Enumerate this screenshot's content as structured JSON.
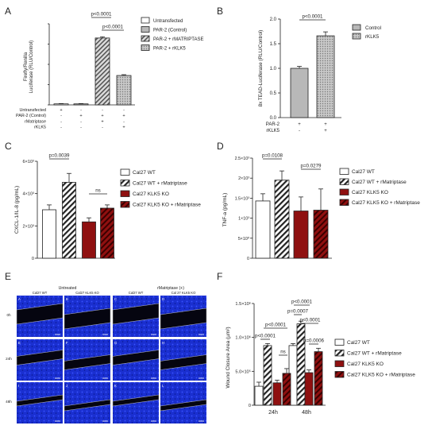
{
  "chart_data": [
    {
      "panel": "A",
      "type": "bar",
      "ylabel": "Firefly/Renilla Luciferase (RLU/Control)",
      "ylim": [
        0,
        80
      ],
      "categories": [
        "Untransfected",
        "PAR-2 (Control)",
        "PAR-2 + rMATRIPTASE",
        "PAR-2 + rKLK5"
      ],
      "values": [
        1,
        1,
        66,
        29
      ],
      "errors": [
        0.3,
        0.3,
        1.2,
        0.8
      ],
      "legend": [
        "Untransfected",
        "PAR-2 (Control)",
        "PAR-2 + rMATRIPTASE",
        "PAR-2 + rKLK5"
      ],
      "legend_placement": "right",
      "row_labels": [
        "Untransfected",
        "PAR-2 (Control)",
        "rMatriptase",
        "rKLK5"
      ],
      "row_signs": [
        [
          "+",
          "-",
          "-",
          "-"
        ],
        [
          "-",
          "+",
          "+",
          "+"
        ],
        [
          "-",
          "-",
          "+",
          "-"
        ],
        [
          "-",
          "-",
          "-",
          "+"
        ]
      ],
      "annotations": [
        "p<0.0001",
        "p<0.0001"
      ],
      "patterns": [
        "white",
        "gray",
        "stripes",
        "dots"
      ]
    },
    {
      "panel": "B",
      "type": "bar",
      "ylabel": "8x TEAD-Luciferase (RLU/Control)",
      "ylim": [
        0,
        2.0
      ],
      "yticks": [
        "0.0",
        "0.5",
        "1.0",
        "1.5",
        "2.0"
      ],
      "categories": [
        "Control",
        "rKLK5"
      ],
      "values": [
        1.0,
        1.66
      ],
      "errors": [
        0.04,
        0.08
      ],
      "legend": [
        "Control",
        "rKLK5"
      ],
      "legend_placement": "right",
      "row_labels": [
        "PAR-2",
        "rKLK5"
      ],
      "row_signs": [
        [
          "+",
          "+"
        ],
        [
          "-",
          "+"
        ]
      ],
      "annotations": [
        "p<0.0001"
      ]
    },
    {
      "panel": "C",
      "type": "bar",
      "ylabel": "CXCL-1/IL-8 (pg/mL)",
      "ylim": [
        0,
        6000
      ],
      "yticks": [
        "0",
        "2×10³",
        "4×10³",
        "6×10³"
      ],
      "categories": [
        "Cal27 WT",
        "Cal27 WT + rMatriptase",
        "Cal27 KLK5 KO",
        "Cal27 KLK5 KO + rMatriptase"
      ],
      "values": [
        3000,
        4700,
        2250,
        3100
      ],
      "errors": [
        300,
        550,
        250,
        200
      ],
      "legend": [
        "Cal27 WT",
        "Cal27 WT + rMatriptase",
        "Cal27 KLK5 KO",
        "Cal27 KLK5 KO + rMatriptase"
      ],
      "legend_placement": "right",
      "annotations": [
        "p=0.0039",
        "ns"
      ]
    },
    {
      "panel": "D",
      "type": "bar",
      "ylabel": "TNF-a (pg/mL)",
      "ylim": [
        0,
        25000
      ],
      "yticks": [
        "0",
        "5×10⁰",
        "1×10³",
        "1.5×10³",
        "2×10³",
        "2.5×10³"
      ],
      "categories": [
        "Cal27 WT",
        "Cal27 WT + rMatriptase",
        "Cal27 KLK5 KO",
        "Cal27 KLK5 KO + rMatriptase"
      ],
      "values": [
        14300,
        19500,
        11800,
        12000
      ],
      "errors": [
        1800,
        2300,
        3500,
        5300
      ],
      "legend": [
        "Cal27 WT",
        "Cal27 WT + rMatriptase",
        "Cal27 KLK5 KO",
        "Cal27 KLK5 KO + rMatriptase"
      ],
      "legend_placement": "right",
      "annotations": [
        "p=0.0108",
        "p=0.0279"
      ]
    },
    {
      "panel": "F",
      "type": "bar",
      "ylabel": "Wound Closure Area (µm²)",
      "ylim": [
        0,
        1500000
      ],
      "yticks": [
        "0",
        "5.0×10⁵",
        "1.0×10⁶",
        "1.5×10⁶"
      ],
      "categories": [
        "24h",
        "48h"
      ],
      "series": [
        {
          "name": "Cal27 WT",
          "values": [
            280000,
            880000
          ],
          "errors": [
            60000,
            30000
          ]
        },
        {
          "name": "Cal27 WT + rMatriptase",
          "values": [
            880000,
            1200000
          ],
          "errors": [
            30000,
            40000
          ]
        },
        {
          "name": "Cal27 KLK5 KO",
          "values": [
            330000,
            480000
          ],
          "errors": [
            40000,
            40000
          ]
        },
        {
          "name": "Cal27 KLK5 KO + rMatriptase",
          "values": [
            470000,
            790000
          ],
          "errors": [
            70000,
            50000
          ]
        }
      ],
      "legend_placement": "right",
      "annotations": [
        "p<0.0001",
        "p<0.0001",
        "ns",
        "p<0.0001",
        "p=0.0007",
        "p<0.0001",
        "p=0.0006"
      ]
    }
  ],
  "panel_e": {
    "group_labels": [
      "Untreated",
      "rMatriptase (+)"
    ],
    "column_labels": [
      "Cal27 WT",
      "Cal27 KLK5 KO",
      "Cal27 WT",
      "Cal 27 KLK5 KO"
    ],
    "row_labels": [
      "0h",
      "24h",
      "48h"
    ],
    "tile_letters": [
      "A",
      "B",
      "C",
      "D",
      "E",
      "F",
      "G",
      "H",
      "I",
      "J",
      "K",
      "L"
    ]
  },
  "panel_letters": [
    "A",
    "B",
    "C",
    "D",
    "E",
    "F"
  ],
  "colors": {
    "gray": "#b0b0b0",
    "dark_red": "#8f1010",
    "red_stripe_bg": "#8f1010",
    "blue_cells": "#1a2fd0"
  }
}
